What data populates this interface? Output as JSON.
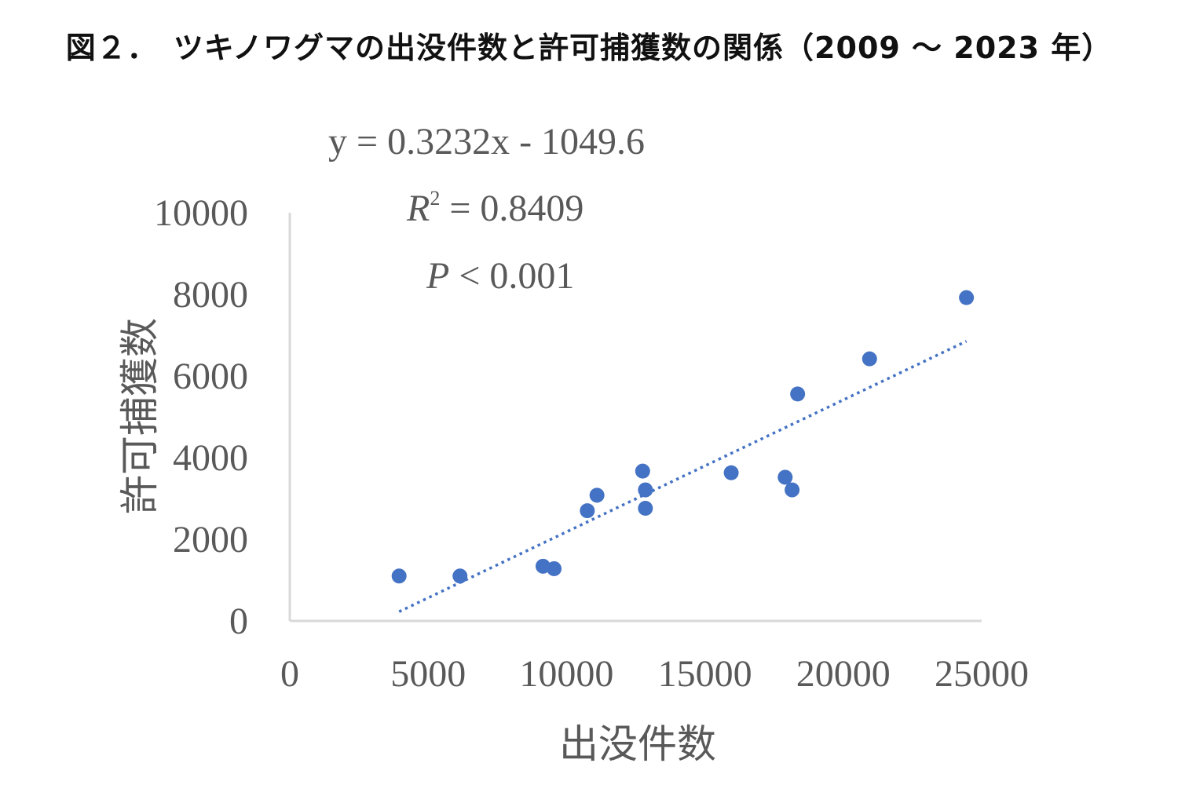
{
  "chart_data": {
    "type": "scatter",
    "title": "図２．　ツキノワグマの出没件数と許可捕獲数の関係（2009 ～ 2023 年）",
    "xlabel": "出没件数",
    "ylabel": "許可捕獲数",
    "xlim": [
      0,
      25000
    ],
    "ylim": [
      0,
      10000
    ],
    "x_ticks": [
      "0",
      "5000",
      "10000",
      "15000",
      "20000",
      "25000"
    ],
    "y_ticks": [
      "0",
      "2000",
      "4000",
      "6000",
      "8000",
      "10000"
    ],
    "grid": false,
    "legend": "none",
    "marker_color": "#4472C4",
    "trendline_color": "#4472C4",
    "points": [
      {
        "x": 3950,
        "y": 1100
      },
      {
        "x": 6150,
        "y": 1100
      },
      {
        "x": 9150,
        "y": 1340
      },
      {
        "x": 9550,
        "y": 1280
      },
      {
        "x": 10750,
        "y": 2700
      },
      {
        "x": 11100,
        "y": 3080
      },
      {
        "x": 12750,
        "y": 3670
      },
      {
        "x": 12850,
        "y": 3210
      },
      {
        "x": 12850,
        "y": 2760
      },
      {
        "x": 15950,
        "y": 3630
      },
      {
        "x": 17900,
        "y": 3520
      },
      {
        "x": 18150,
        "y": 3210
      },
      {
        "x": 18350,
        "y": 5560
      },
      {
        "x": 20950,
        "y": 6420
      },
      {
        "x": 24450,
        "y": 7920
      }
    ],
    "trendline": {
      "style": "dotted",
      "slope": 0.3232,
      "intercept": -1049.6,
      "x_range": [
        3950,
        24450
      ]
    },
    "annotations": {
      "equation": "y = 0.3232x - 1049.6",
      "r2_label": "R",
      "r2_sup": "2",
      "r2_value": " = 0.8409",
      "p_label": "P",
      "p_value": " < 0.001"
    }
  }
}
